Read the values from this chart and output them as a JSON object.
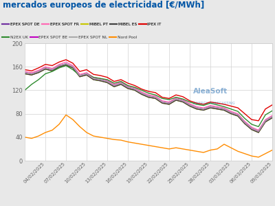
{
  "title": "mercados europeos de electricidad [€/MWh]",
  "title_color": "#0055a5",
  "background_color": "#e8e8e8",
  "plot_bg_color": "#ffffff",
  "ylim": [
    0,
    200
  ],
  "yticks": [
    0,
    40,
    80,
    120,
    160,
    200
  ],
  "n_points": 37,
  "xtick_labels": [
    "04/02/2025",
    "07/02/2025",
    "10/02/2025",
    "13/02/2025",
    "16/02/2025",
    "19/02/2025",
    "22/02/2025",
    "25/02/2025",
    "28/02/2025",
    "03/03/2025",
    "06/03/2025",
    "09/03/2025"
  ],
  "xtick_positions": [
    3,
    6,
    9,
    12,
    15,
    18,
    21,
    24,
    27,
    30,
    33,
    36
  ],
  "series": {
    "EPEX SPOT DE": {
      "color": "#7030a0",
      "values": [
        150,
        148,
        152,
        158,
        155,
        162,
        165,
        160,
        145,
        148,
        140,
        138,
        135,
        128,
        132,
        125,
        122,
        115,
        110,
        108,
        100,
        98,
        105,
        102,
        95,
        90,
        88,
        92,
        90,
        88,
        82,
        78,
        65,
        55,
        50,
        68,
        75
      ]
    },
    "EPEX SPOT FR": {
      "color": "#ff69b4",
      "values": [
        152,
        150,
        154,
        160,
        157,
        164,
        168,
        162,
        147,
        150,
        142,
        140,
        137,
        130,
        134,
        127,
        124,
        117,
        112,
        110,
        102,
        100,
        107,
        104,
        97,
        92,
        90,
        94,
        92,
        90,
        84,
        80,
        67,
        57,
        52,
        70,
        77
      ]
    },
    "MIBEL PT": {
      "color": "#c8c800",
      "values": [
        148,
        146,
        150,
        156,
        153,
        160,
        163,
        158,
        143,
        146,
        138,
        136,
        133,
        126,
        130,
        123,
        120,
        113,
        108,
        106,
        98,
        96,
        103,
        100,
        93,
        88,
        86,
        90,
        88,
        86,
        80,
        76,
        63,
        53,
        48,
        66,
        73
      ]
    },
    "MIBEL ES": {
      "color": "#404040",
      "values": [
        148,
        146,
        150,
        156,
        153,
        160,
        163,
        158,
        143,
        146,
        138,
        136,
        133,
        126,
        130,
        123,
        120,
        113,
        108,
        106,
        98,
        96,
        103,
        100,
        93,
        88,
        86,
        90,
        88,
        86,
        80,
        76,
        63,
        53,
        48,
        66,
        73
      ]
    },
    "IPEX IT": {
      "color": "#e00000",
      "values": [
        155,
        153,
        158,
        164,
        162,
        168,
        172,
        166,
        152,
        155,
        147,
        145,
        142,
        135,
        138,
        132,
        128,
        122,
        118,
        116,
        108,
        106,
        112,
        109,
        102,
        98,
        96,
        100,
        98,
        96,
        93,
        90,
        80,
        70,
        68,
        88,
        95
      ]
    },
    "N2EX UK": {
      "color": "#2e8b2e",
      "values": [
        120,
        130,
        138,
        148,
        152,
        158,
        162,
        155,
        145,
        148,
        142,
        140,
        138,
        132,
        135,
        128,
        125,
        120,
        115,
        112,
        106,
        104,
        108,
        105,
        100,
        96,
        94,
        98,
        95,
        92,
        88,
        84,
        72,
        62,
        58,
        78,
        85
      ]
    },
    "EPEX SPOT BE": {
      "color": "#c000c0",
      "values": [
        150,
        148,
        152,
        158,
        155,
        162,
        165,
        160,
        145,
        148,
        140,
        138,
        135,
        128,
        132,
        125,
        122,
        115,
        110,
        108,
        100,
        98,
        105,
        102,
        95,
        90,
        88,
        92,
        90,
        88,
        82,
        78,
        65,
        55,
        50,
        68,
        75
      ]
    },
    "EPEX SPOT NL": {
      "color": "#aaaaaa",
      "values": [
        150,
        148,
        152,
        158,
        155,
        162,
        165,
        160,
        145,
        148,
        140,
        138,
        135,
        128,
        132,
        125,
        122,
        115,
        110,
        108,
        100,
        98,
        105,
        102,
        95,
        90,
        88,
        92,
        90,
        88,
        82,
        78,
        65,
        55,
        50,
        68,
        75
      ]
    },
    "Nord Pool": {
      "color": "#ff8c00",
      "values": [
        40,
        38,
        42,
        48,
        52,
        62,
        78,
        70,
        58,
        48,
        42,
        40,
        38,
        36,
        35,
        32,
        30,
        28,
        26,
        24,
        22,
        20,
        22,
        20,
        18,
        16,
        14,
        18,
        20,
        28,
        22,
        16,
        12,
        8,
        6,
        12,
        18
      ]
    }
  },
  "legend_rows": [
    [
      {
        "label": "EPEX SPOT DE",
        "color": "#7030a0"
      },
      {
        "label": "EPEX SPOT FR",
        "color": "#ff69b4"
      },
      {
        "label": "MIBEL PT",
        "color": "#c8c800"
      },
      {
        "label": "MIBEL ES",
        "color": "#404040"
      },
      {
        "label": "IPEX IT",
        "color": "#e00000"
      }
    ],
    [
      {
        "label": "N2EX UK",
        "color": "#2e8b2e"
      },
      {
        "label": "EPEX SPOT BE",
        "color": "#c000c0"
      },
      {
        "label": "EPEX SPOT NL",
        "color": "#aaaaaa"
      },
      {
        "label": "Nord Pool",
        "color": "#ff8c00"
      }
    ]
  ],
  "watermark": "AleaSoft",
  "watermark_sub": "ENERGY FORECASTING",
  "grid_color": "#d0d0d0",
  "linewidth": 1.0
}
